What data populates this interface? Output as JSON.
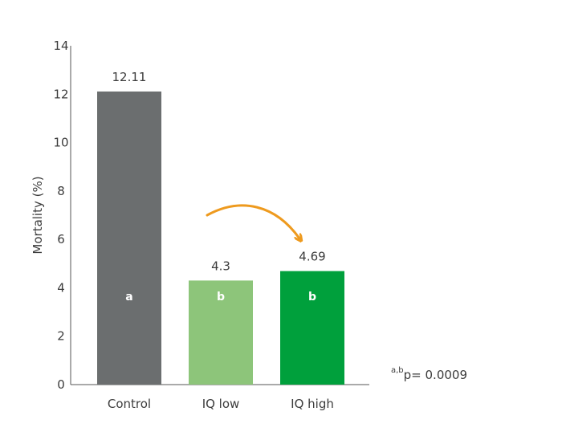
{
  "chart_data": {
    "type": "bar",
    "categories": [
      "Control",
      "IQ low",
      "IQ high"
    ],
    "values": [
      12.11,
      4.3,
      4.69
    ],
    "value_labels": [
      "12.11",
      "4.3",
      "4.69"
    ],
    "significance_letters": [
      "a",
      "b",
      "b"
    ],
    "colors": [
      "#6b6e6f",
      "#8dc57a",
      "#00a03c"
    ],
    "ylabel": "Mortality (%)",
    "xlabel": "",
    "title": "",
    "ylim": [
      0,
      14
    ],
    "yticks": [
      0,
      2,
      4,
      6,
      8,
      10,
      12,
      14
    ],
    "grid": false,
    "arrow_color": "#ee9a1e",
    "footnote": {
      "superscript": "a,b",
      "text": "p= 0.0009"
    }
  }
}
